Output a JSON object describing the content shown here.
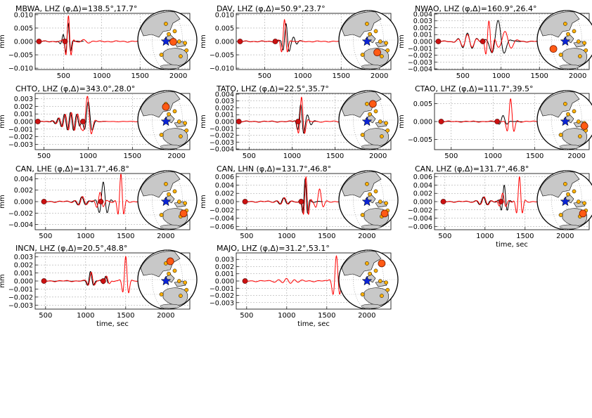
{
  "figure": {
    "y_unit_label": "mm",
    "x_unit_label": "time, sec"
  },
  "chart_data": [
    {
      "type": "line",
      "title": "MBWA, LHZ (φ,Δ)=138.5°,17.7°",
      "xlabel": "",
      "ylabel": "mm",
      "xlim": [
        130,
        2150
      ],
      "ylim": [
        -0.0105,
        0.0105
      ],
      "xticks": [
        500,
        1000,
        1500,
        2000
      ],
      "yticks": [
        -0.01,
        -0.005,
        0.0,
        0.005,
        0.01
      ],
      "ytick_labels": [
        "−0.010",
        "−0.005",
        "0.000",
        "0.005",
        "0.010"
      ],
      "grid": true,
      "markers": [
        180,
        520
      ],
      "series": [
        {
          "color": "#000000",
          "start": 180,
          "end": 760,
          "wave": [
            {
              "t": 560,
              "a": 0.0072,
              "w": 42,
              "p": 75
            },
            {
              "t": 500,
              "a": 0.0022,
              "w": 50,
              "p": 95
            }
          ]
        },
        {
          "color": "#ff0000",
          "start": 180,
          "end": 2150,
          "wave": [
            {
              "t": 565,
              "a": 0.0095,
              "w": 45,
              "p": 78
            },
            {
              "t": 760,
              "a": 0.0005,
              "w": 120,
              "p": 150
            }
          ]
        }
      ],
      "globe": {
        "station": [
          0.2,
          0.06
        ],
        "quake_radius": 8
      }
    },
    {
      "type": "line",
      "title": "DAV, LHZ (φ,Δ)=50.9°,23.7°",
      "xlabel": "",
      "ylabel": "mm",
      "xlim": [
        130,
        2150
      ],
      "ylim": [
        -0.0105,
        0.0105
      ],
      "xticks": [
        500,
        1000,
        1500,
        2000
      ],
      "yticks": [
        -0.01,
        -0.005,
        0.0,
        0.005,
        0.01
      ],
      "ytick_labels": [
        "−0.010",
        "−0.005",
        "0.000",
        "0.005",
        "0.010"
      ],
      "grid": true,
      "markers": [
        180,
        640
      ],
      "series": [
        {
          "color": "#000000",
          "start": 180,
          "end": 1000,
          "wave": [
            {
              "t": 780,
              "a": 0.0065,
              "w": 50,
              "p": 90
            },
            {
              "t": 880,
              "a": 0.0015,
              "w": 60,
              "p": 90
            }
          ]
        },
        {
          "color": "#ff0000",
          "start": 180,
          "end": 2150,
          "wave": [
            {
              "t": 760,
              "a": 0.008,
              "w": 48,
              "p": 88
            }
          ]
        }
      ],
      "globe": {
        "station": [
          0.3,
          0.42
        ],
        "quake_radius": 8
      }
    },
    {
      "type": "line",
      "title": "NWAO, LHZ (φ,Δ)=160.9°,26.4°",
      "xlabel": "",
      "ylabel": "mm",
      "xlim": [
        130,
        2150
      ],
      "ylim": [
        -0.0041,
        0.0041
      ],
      "xticks": [
        500,
        1000,
        1500,
        2000
      ],
      "yticks": [
        -0.004,
        -0.003,
        -0.002,
        -0.001,
        0.0,
        0.001,
        0.002,
        0.003,
        0.004
      ],
      "ytick_labels": [
        "−0.004",
        "−0.003",
        "−0.002",
        "−0.001",
        "0.000",
        "0.001",
        "0.002",
        "0.003",
        "0.004"
      ],
      "grid": true,
      "markers": [
        180,
        760
      ],
      "series": [
        {
          "color": "#000000",
          "start": 180,
          "end": 1500,
          "wave": [
            {
              "t": 960,
              "a": 0.003,
              "w": 110,
              "p": 180
            },
            {
              "t": 560,
              "a": 0.0012,
              "w": 120,
              "p": 130
            }
          ]
        },
        {
          "color": "#ff0000",
          "start": 180,
          "end": 2150,
          "wave": [
            {
              "t": 840,
              "a": 0.003,
              "w": 60,
              "p": 90
            },
            {
              "t": 1050,
              "a": 0.0015,
              "w": 120,
              "p": 180
            },
            {
              "t": 560,
              "a": 0.001,
              "w": 120,
              "p": 130
            }
          ]
        }
      ],
      "globe": {
        "station": [
          -0.45,
          0.3
        ],
        "quake_radius": 8
      }
    },
    {
      "type": "line",
      "title": "CHTO, LHZ (φ,Δ)=343.0°,28.0°",
      "xlabel": "",
      "ylabel": "mm",
      "xlim": [
        400,
        2150
      ],
      "ylim": [
        -0.0037,
        0.0037
      ],
      "xticks": [
        500,
        1000,
        1500,
        2000
      ],
      "yticks": [
        -0.003,
        -0.002,
        -0.001,
        0.0,
        0.001,
        0.002,
        0.003
      ],
      "ytick_labels": [
        "−0.003",
        "−0.002",
        "−0.001",
        "0.000",
        "0.001",
        "0.002",
        "0.003"
      ],
      "grid": true,
      "markers": [
        430,
        940
      ],
      "series": [
        {
          "color": "#000000",
          "start": 430,
          "end": 1200,
          "wave": [
            {
              "t": 800,
              "a": 0.0012,
              "w": 140,
              "p": 70
            },
            {
              "t": 1000,
              "a": 0.0025,
              "w": 55,
              "p": 110
            }
          ]
        },
        {
          "color": "#ff0000",
          "start": 430,
          "end": 2150,
          "wave": [
            {
              "t": 810,
              "a": 0.0012,
              "w": 140,
              "p": 70
            },
            {
              "t": 990,
              "a": 0.0035,
              "w": 55,
              "p": 105
            }
          ]
        }
      ],
      "globe": {
        "station": [
          -0.05,
          -0.45
        ],
        "quake_radius": 8
      }
    },
    {
      "type": "line",
      "title": "TATO, LHZ (φ,Δ)=22.5°,35.7°",
      "xlabel": "",
      "ylabel": "mm",
      "xlim": [
        350,
        2150
      ],
      "ylim": [
        -0.0041,
        0.0041
      ],
      "xticks": [
        500,
        1000,
        1500,
        2000
      ],
      "yticks": [
        -0.004,
        -0.003,
        -0.002,
        -0.001,
        0.0,
        0.001,
        0.002,
        0.003,
        0.004
      ],
      "ytick_labels": [
        "−0.004",
        "−0.003",
        "−0.002",
        "−0.001",
        "0.000",
        "0.001",
        "0.002",
        "0.003",
        "0.004"
      ],
      "grid": true,
      "markers": [
        380,
        1070
      ],
      "series": [
        {
          "color": "#000000",
          "start": 380,
          "end": 1300,
          "wave": [
            {
              "t": 1100,
              "a": 0.0024,
              "w": 45,
              "p": 80
            },
            {
              "t": 1180,
              "a": 0.0008,
              "w": 60,
              "p": 90
            }
          ]
        },
        {
          "color": "#ff0000",
          "start": 380,
          "end": 2150,
          "wave": [
            {
              "t": 1110,
              "a": 0.0036,
              "w": 45,
              "p": 85
            }
          ]
        }
      ],
      "globe": {
        "station": [
          0.15,
          -0.55
        ],
        "quake_radius": 8
      }
    },
    {
      "type": "line",
      "title": "CTAO, LHZ (φ,Δ)=111.7°,39.5°",
      "xlabel": "",
      "ylabel": "mm",
      "xlim": [
        300,
        2150
      ],
      "ylim": [
        -0.0078,
        0.0078
      ],
      "xticks": [
        500,
        1000,
        1500,
        2000
      ],
      "yticks": [
        -0.005,
        0.0,
        0.005
      ],
      "ytick_labels": [
        "−0.005",
        "0.000",
        "0.005"
      ],
      "grid": true,
      "markers": [
        380,
        1050
      ],
      "series": [
        {
          "color": "#000000",
          "start": 380,
          "end": 1350,
          "wave": [
            {
              "t": 1120,
              "a": 0.0017,
              "w": 55,
              "p": 110
            }
          ]
        },
        {
          "color": "#ff0000",
          "start": 380,
          "end": 2150,
          "wave": [
            {
              "t": 1210,
              "a": 0.0062,
              "w": 48,
              "p": 95
            }
          ]
        }
      ],
      "globe": {
        "station": [
          0.6,
          0.2
        ],
        "quake_radius": 8
      }
    },
    {
      "type": "line",
      "title": "CAN, LHE (φ,Δ)=131.7°,46.8°",
      "xlabel": "",
      "ylabel": "mm",
      "xlim": [
        370,
        2300
      ],
      "ylim": [
        -0.0049,
        0.0049
      ],
      "xticks": [
        500,
        1000,
        1500,
        2000
      ],
      "yticks": [
        -0.004,
        -0.002,
        0.0,
        0.002,
        0.004
      ],
      "ytick_labels": [
        "−0.004",
        "−0.002",
        "0.000",
        "0.002",
        "0.004"
      ],
      "grid": true,
      "markers": [
        480,
        1190
      ],
      "series": [
        {
          "color": "#000000",
          "start": 480,
          "end": 1350,
          "wave": [
            {
              "t": 1220,
              "a": 0.0034,
              "w": 70,
              "p": 110
            },
            {
              "t": 950,
              "a": 0.0008,
              "w": 80,
              "p": 100
            }
          ]
        },
        {
          "color": "#ff0000",
          "start": 480,
          "end": 2300,
          "wave": [
            {
              "t": 1440,
              "a": 0.0048,
              "w": 45,
              "p": 85
            },
            {
              "t": 960,
              "a": 0.0008,
              "w": 80,
              "p": 100
            },
            {
              "t": 1180,
              "a": 0.0015,
              "w": 60,
              "p": 90
            }
          ]
        }
      ],
      "globe": {
        "station": [
          0.55,
          0.45
        ],
        "quake_radius": 8
      }
    },
    {
      "type": "line",
      "title": "CAN, LHN (φ,Δ)=131.7°,46.8°",
      "xlabel": "",
      "ylabel": "mm",
      "xlim": [
        370,
        2300
      ],
      "ylim": [
        -0.0068,
        0.0068
      ],
      "xticks": [
        500,
        1000,
        1500,
        2000
      ],
      "yticks": [
        -0.006,
        -0.004,
        -0.002,
        0.0,
        0.002,
        0.004,
        0.006
      ],
      "ytick_labels": [
        "−0.006",
        "−0.004",
        "−0.002",
        "0.000",
        "0.002",
        "0.004",
        "0.006"
      ],
      "grid": true,
      "markers": [
        480,
        1180
      ],
      "series": [
        {
          "color": "#000000",
          "start": 480,
          "end": 1450,
          "wave": [
            {
              "t": 1230,
              "a": 0.0055,
              "w": 40,
              "p": 70
            },
            {
              "t": 960,
              "a": 0.0008,
              "w": 80,
              "p": 100
            }
          ]
        },
        {
          "color": "#ff0000",
          "start": 480,
          "end": 2300,
          "wave": [
            {
              "t": 1240,
              "a": 0.006,
              "w": 42,
              "p": 72
            },
            {
              "t": 1410,
              "a": 0.003,
              "w": 55,
              "p": 110
            },
            {
              "t": 970,
              "a": 0.0008,
              "w": 80,
              "p": 100
            }
          ]
        }
      ],
      "globe": {
        "station": [
          0.55,
          0.45
        ],
        "quake_radius": 8
      }
    },
    {
      "type": "line",
      "title": "CAN, LHZ (φ,Δ)=131.7°,46.8°",
      "xlabel": "time, sec",
      "ylabel": "",
      "xlim": [
        370,
        2300
      ],
      "ylim": [
        -0.0068,
        0.0068
      ],
      "xticks": [
        500,
        1000,
        1500,
        2000
      ],
      "yticks": [
        -0.006,
        -0.004,
        -0.002,
        0.0,
        0.002,
        0.004,
        0.006
      ],
      "ytick_labels": [
        "−0.006",
        "−0.004",
        "−0.002",
        "0.000",
        "0.002",
        "0.004",
        "0.006"
      ],
      "grid": true,
      "markers": [
        480,
        1200
      ],
      "series": [
        {
          "color": "#000000",
          "start": 480,
          "end": 1350,
          "wave": [
            {
              "t": 1240,
              "a": 0.004,
              "w": 50,
              "p": 85
            },
            {
              "t": 980,
              "a": 0.001,
              "w": 80,
              "p": 100
            }
          ]
        },
        {
          "color": "#ff0000",
          "start": 480,
          "end": 2300,
          "wave": [
            {
              "t": 1430,
              "a": 0.006,
              "w": 45,
              "p": 85
            },
            {
              "t": 990,
              "a": 0.001,
              "w": 80,
              "p": 100
            },
            {
              "t": 1220,
              "a": 0.002,
              "w": 60,
              "p": 90
            }
          ]
        }
      ],
      "globe": {
        "station": [
          0.55,
          0.45
        ],
        "quake_radius": 8
      }
    },
    {
      "type": "line",
      "title": "INCN, LHZ (φ,Δ)=20.5°,48.8°",
      "xlabel": "time, sec",
      "ylabel": "mm",
      "xlim": [
        370,
        2300
      ],
      "ylim": [
        -0.0035,
        0.0035
      ],
      "xticks": [
        500,
        1000,
        1500,
        2000
      ],
      "yticks": [
        -0.003,
        -0.002,
        -0.001,
        0.0,
        0.001,
        0.002,
        0.003
      ],
      "ytick_labels": [
        "−0.003",
        "−0.002",
        "−0.001",
        "0.000",
        "0.001",
        "0.002",
        "0.003"
      ],
      "grid": true,
      "markers": [
        480,
        1220
      ],
      "series": [
        {
          "color": "#000000",
          "start": 480,
          "end": 1280,
          "wave": [
            {
              "t": 1060,
              "a": 0.0012,
              "w": 45,
              "p": 90
            },
            {
              "t": 1250,
              "a": 0.0006,
              "w": 50,
              "p": 80
            }
          ]
        },
        {
          "color": "#ff0000",
          "start": 480,
          "end": 2300,
          "wave": [
            {
              "t": 1500,
              "a": 0.003,
              "w": 45,
              "p": 85
            },
            {
              "t": 1070,
              "a": 0.0011,
              "w": 45,
              "p": 90
            },
            {
              "t": 1260,
              "a": 0.0006,
              "w": 50,
              "p": 80
            }
          ]
        }
      ],
      "globe": {
        "station": [
          0.1,
          -0.62
        ],
        "quake_radius": 8
      }
    },
    {
      "type": "line",
      "title": "MAJO, LHZ (φ,Δ)=31.2°,53.1°",
      "xlabel": "time, sec",
      "ylabel": "",
      "xlim": [
        370,
        2300
      ],
      "ylim": [
        -0.0039,
        0.0039
      ],
      "xticks": [
        500,
        1000,
        1500,
        2000
      ],
      "yticks": [
        -0.003,
        -0.002,
        -0.001,
        0.0,
        0.001,
        0.002,
        0.003
      ],
      "ytick_labels": [
        "−0.003",
        "−0.002",
        "−0.001",
        "0.000",
        "0.001",
        "0.002",
        "0.003"
      ],
      "grid": true,
      "markers": [
        480
      ],
      "series": [
        {
          "color": "#ff0000",
          "start": 480,
          "end": 2300,
          "wave": [
            {
              "t": 1620,
              "a": 0.0035,
              "w": 55,
              "p": 95
            },
            {
              "t": 1000,
              "a": 0.0003,
              "w": 150,
              "p": 100
            }
          ]
        }
      ],
      "globe": {
        "station": [
          0.45,
          -0.55
        ],
        "quake_radius": 8
      }
    }
  ]
}
